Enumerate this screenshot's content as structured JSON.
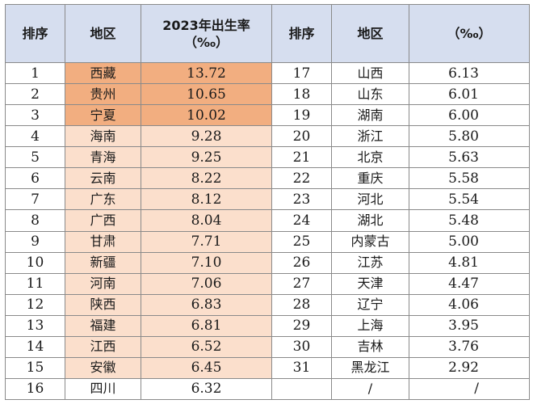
{
  "colors": {
    "header_bg": "#d6deef",
    "highlight_top3": "#f2ae80",
    "highlight_top15": "#fbdfcc",
    "grid": "#8a8a8a"
  },
  "header": {
    "rank": "排序",
    "region": "地区",
    "rate_line1": "2023年出生率",
    "rate_line2": "（‰）",
    "rank2": "排序",
    "region2": "地区",
    "rate2": "（‰）"
  },
  "left_rows": [
    {
      "rank": "1",
      "region": "西藏",
      "rate": "13.72",
      "highlight": "strong"
    },
    {
      "rank": "2",
      "region": "贵州",
      "rate": "10.65",
      "highlight": "strong"
    },
    {
      "rank": "3",
      "region": "宁夏",
      "rate": "10.02",
      "highlight": "strong"
    },
    {
      "rank": "4",
      "region": "海南",
      "rate": "9.28",
      "highlight": "light"
    },
    {
      "rank": "5",
      "region": "青海",
      "rate": "9.25",
      "highlight": "light"
    },
    {
      "rank": "6",
      "region": "云南",
      "rate": "8.22",
      "highlight": "light"
    },
    {
      "rank": "7",
      "region": "广东",
      "rate": "8.12",
      "highlight": "light"
    },
    {
      "rank": "8",
      "region": "广西",
      "rate": "8.04",
      "highlight": "light"
    },
    {
      "rank": "9",
      "region": "甘肃",
      "rate": "7.71",
      "highlight": "light"
    },
    {
      "rank": "10",
      "region": "新疆",
      "rate": "7.10",
      "highlight": "light"
    },
    {
      "rank": "11",
      "region": "河南",
      "rate": "7.06",
      "highlight": "light"
    },
    {
      "rank": "12",
      "region": "陕西",
      "rate": "6.83",
      "highlight": "light"
    },
    {
      "rank": "13",
      "region": "福建",
      "rate": "6.81",
      "highlight": "light"
    },
    {
      "rank": "14",
      "region": "江西",
      "rate": "6.52",
      "highlight": "light"
    },
    {
      "rank": "15",
      "region": "安徽",
      "rate": "6.45",
      "highlight": "light"
    },
    {
      "rank": "16",
      "region": "四川",
      "rate": "6.32",
      "highlight": "none"
    }
  ],
  "right_rows": [
    {
      "rank": "17",
      "region": "山西",
      "rate": "6.13"
    },
    {
      "rank": "18",
      "region": "山东",
      "rate": "6.01"
    },
    {
      "rank": "19",
      "region": "湖南",
      "rate": "6.00"
    },
    {
      "rank": "20",
      "region": "浙江",
      "rate": "5.80"
    },
    {
      "rank": "21",
      "region": "北京",
      "rate": "5.63"
    },
    {
      "rank": "22",
      "region": "重庆",
      "rate": "5.58"
    },
    {
      "rank": "23",
      "region": "河北",
      "rate": "5.54"
    },
    {
      "rank": "24",
      "region": "湖北",
      "rate": "5.48"
    },
    {
      "rank": "25",
      "region": "内蒙古",
      "rate": "5.00"
    },
    {
      "rank": "26",
      "region": "江苏",
      "rate": "4.81"
    },
    {
      "rank": "27",
      "region": "天津",
      "rate": "4.47"
    },
    {
      "rank": "28",
      "region": "辽宁",
      "rate": "4.06"
    },
    {
      "rank": "29",
      "region": "上海",
      "rate": "3.95"
    },
    {
      "rank": "30",
      "region": "吉林",
      "rate": "3.76"
    },
    {
      "rank": "31",
      "region": "黑龙江",
      "rate": "2.92"
    },
    {
      "rank": "",
      "region": "/",
      "rate": "/"
    }
  ]
}
